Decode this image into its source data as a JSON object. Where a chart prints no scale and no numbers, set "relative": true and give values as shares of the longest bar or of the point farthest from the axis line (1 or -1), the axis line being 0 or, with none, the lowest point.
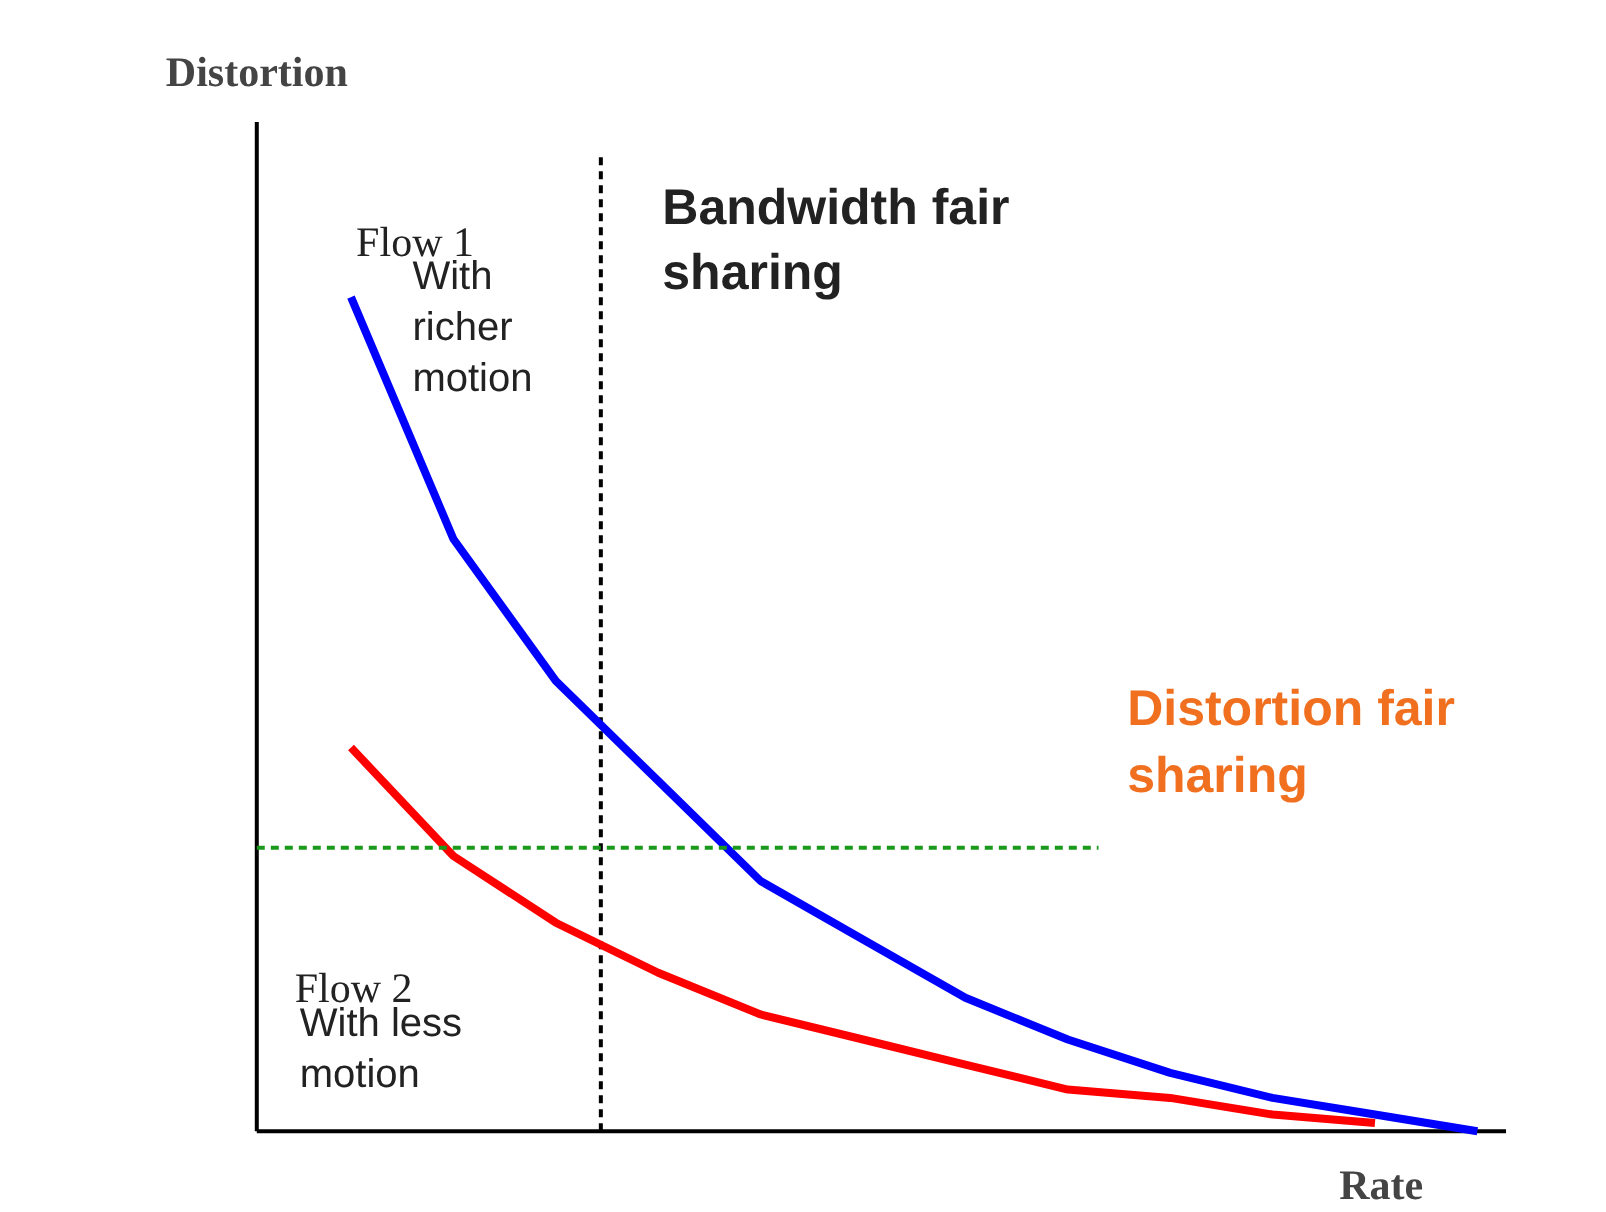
{
  "chart_data": {
    "type": "line",
    "relative": true,
    "xlabel": "Rate",
    "ylabel": "Distortion",
    "categories": [
      null,
      null,
      null,
      null,
      null,
      null,
      null,
      null,
      null,
      null,
      null,
      null
    ],
    "series": [
      {
        "name": "Flow 1",
        "color": "#0000ff",
        "values": [
          1.0,
          0.71,
          0.54,
          0.42,
          0.3,
          0.23,
          0.16,
          0.11,
          0.07,
          0.04,
          0.02,
          0.0
        ]
      },
      {
        "name": "Flow 2",
        "color": "#ff0000",
        "values": [
          0.46,
          0.33,
          0.25,
          0.19,
          0.14,
          0.11,
          0.08,
          0.05,
          0.04,
          0.02,
          0.01,
          null
        ]
      }
    ],
    "ref_lines": [
      {
        "axis": "y",
        "value": 0.34,
        "label": "Distortion fair sharing",
        "color": "#1a9a1a",
        "line_style": "dashed"
      }
    ],
    "annotations": [
      "With richer motion",
      "With less motion",
      "Bandwidth fair sharing"
    ],
    "legend": false,
    "grid": false,
    "marker": "none",
    "line_style": "solid"
  }
}
